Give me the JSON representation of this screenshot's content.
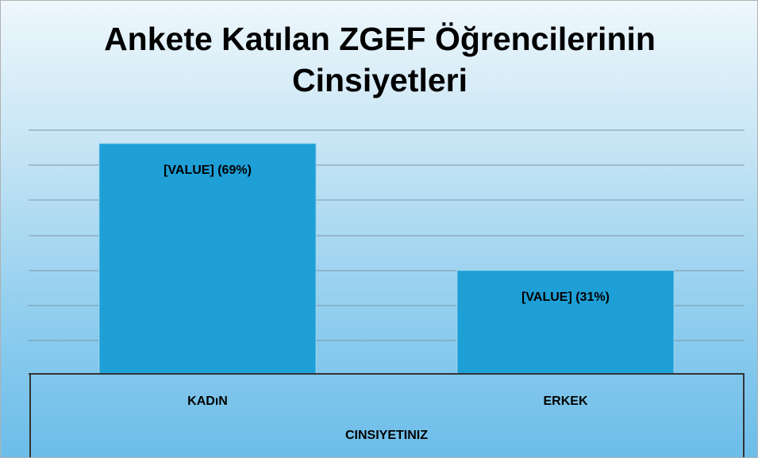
{
  "chart_data": {
    "type": "bar",
    "title": "Ankete Katılan ZGEF Öğrencilerinin Cinsiyetleri",
    "x_label": "CINSIYETINIZ",
    "categories": [
      "KADıN",
      "ERKEK"
    ],
    "values": [
      69,
      31
    ],
    "value_labels": [
      "[VALUE] (69%)",
      "[VALUE] (31%)"
    ],
    "color": "#1e9fd6",
    "ylim": [
      0,
      73
    ],
    "grid": true
  }
}
